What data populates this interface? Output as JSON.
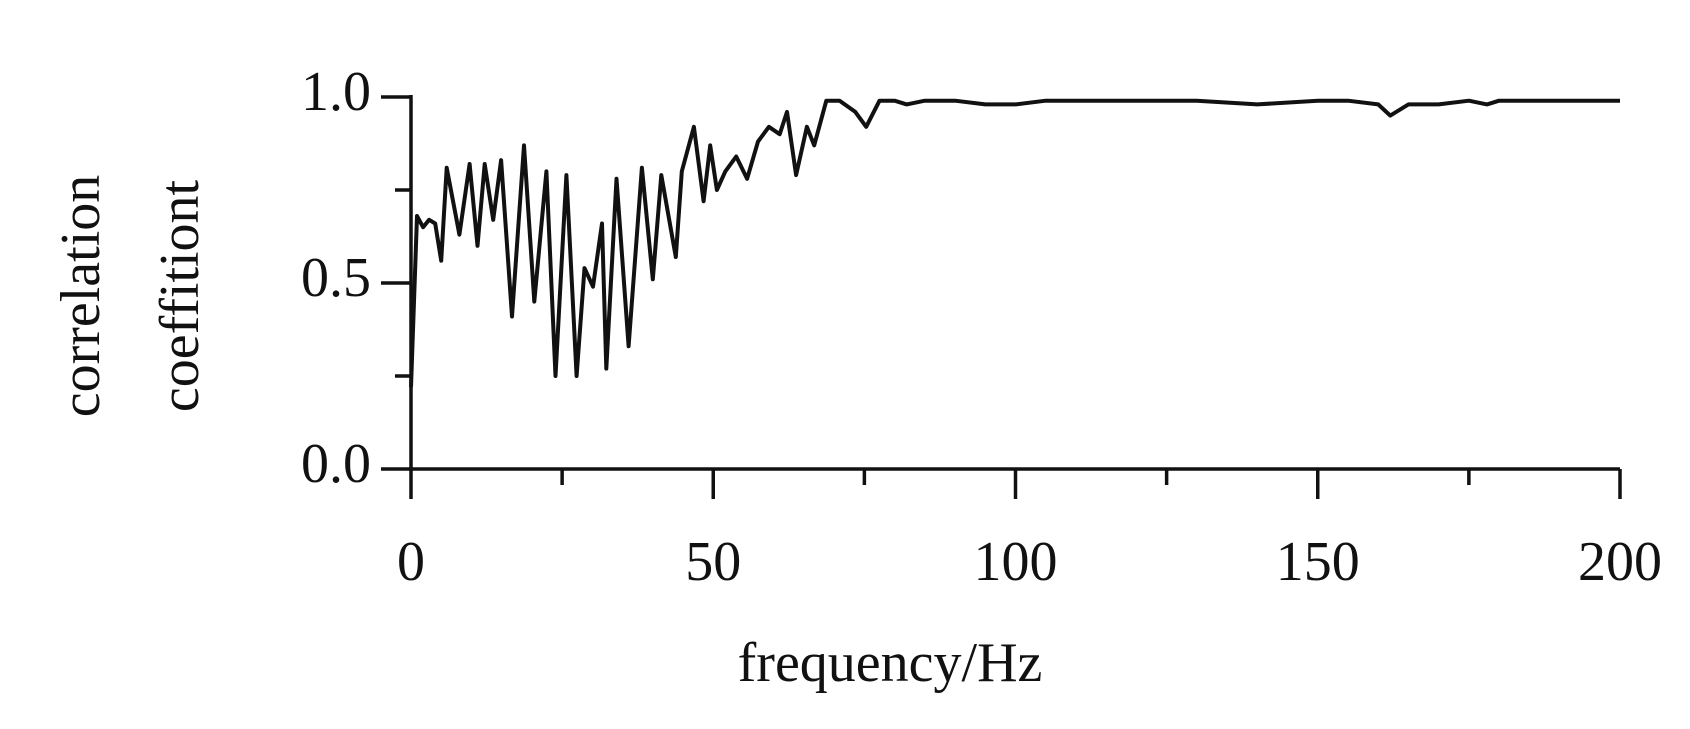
{
  "chart_data": {
    "type": "line",
    "xlabel": "frequency/Hz",
    "ylabel": [
      "correlation",
      "coeffitiont"
    ],
    "xlim": [
      0,
      200
    ],
    "ylim": [
      0,
      1
    ],
    "xticks": [
      0,
      50,
      100,
      150,
      200
    ],
    "xminorticks": [
      25,
      75,
      125,
      175
    ],
    "yticks": [
      {
        "value": 0,
        "label": "0.0"
      },
      {
        "value": 0.5,
        "label": "0.5"
      },
      {
        "value": 1,
        "label": "1.0"
      }
    ],
    "yminorticks": [
      0.25,
      0.75
    ],
    "grid": false,
    "series": [
      {
        "color": "#111111",
        "x": [
          0,
          1,
          2,
          3,
          4,
          5,
          5.9,
          8,
          9.7,
          11,
          12.2,
          13.6,
          14.9,
          16.7,
          18.7,
          20.4,
          22.4,
          23.9,
          25.7,
          27.4,
          28.7,
          30.1,
          31.6,
          32.3,
          34,
          36,
          38.2,
          40,
          41.4,
          43.8,
          44.8,
          46.8,
          48.4,
          49.5,
          50.6,
          52,
          53.8,
          55.6,
          57.4,
          59.2,
          61,
          62.2,
          63.7,
          65.5,
          66.7,
          68.7,
          70.9,
          73.5,
          75.3,
          77.5,
          80,
          82,
          85,
          90,
          95,
          100,
          105,
          110,
          120,
          130,
          140,
          150,
          155,
          160,
          162,
          165,
          170,
          175,
          178,
          180,
          185,
          190,
          195,
          200
        ],
        "values": [
          0.22,
          0.68,
          0.65,
          0.67,
          0.66,
          0.56,
          0.81,
          0.63,
          0.82,
          0.6,
          0.82,
          0.67,
          0.83,
          0.41,
          0.87,
          0.45,
          0.8,
          0.25,
          0.79,
          0.25,
          0.54,
          0.49,
          0.66,
          0.27,
          0.78,
          0.33,
          0.81,
          0.51,
          0.79,
          0.57,
          0.8,
          0.92,
          0.72,
          0.87,
          0.75,
          0.8,
          0.84,
          0.78,
          0.88,
          0.92,
          0.9,
          0.96,
          0.79,
          0.92,
          0.87,
          0.99,
          0.99,
          0.96,
          0.92,
          0.99,
          0.99,
          0.98,
          0.99,
          0.99,
          0.98,
          0.98,
          0.99,
          0.99,
          0.99,
          0.99,
          0.98,
          0.99,
          0.99,
          0.98,
          0.95,
          0.98,
          0.98,
          0.99,
          0.98,
          0.99,
          0.99,
          0.99,
          0.99,
          0.99
        ]
      }
    ]
  }
}
